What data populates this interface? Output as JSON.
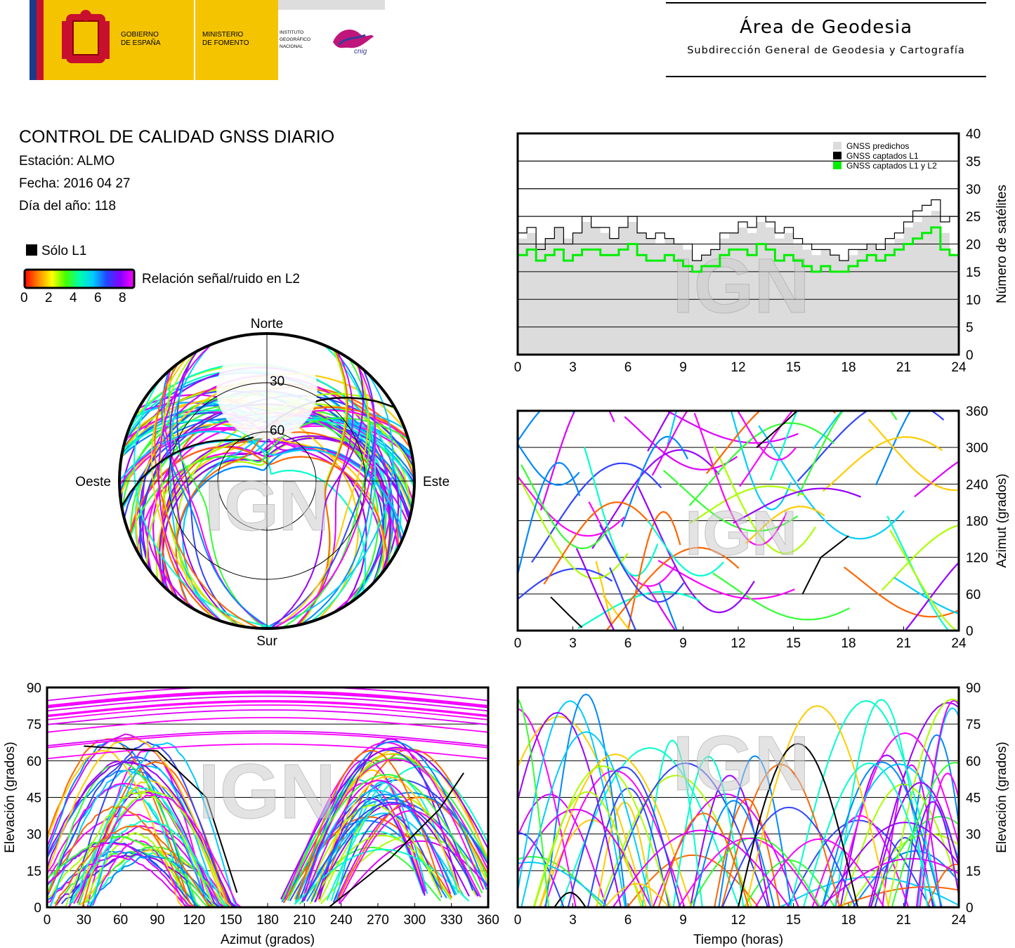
{
  "header": {
    "gov_line1": "GOBIERNO",
    "gov_line2": "DE ESPAÑA",
    "min_line1": "MINISTERIO",
    "min_line2": "DE FOMENTO",
    "ign_line1": "INSTITUTO",
    "ign_line2": "GEOGRÁFICO",
    "ign_line3": "NACIONAL",
    "cnig_text": "cnig",
    "area_title": "Área de Geodesia",
    "area_subtitle": "Subdirección General de Geodesia y Cartografía"
  },
  "info": {
    "title": "CONTROL DE CALIDAD GNSS DIARIO",
    "station": "Estación: ALMO",
    "date": "Fecha: 2016 04 27",
    "doy": "Día del año: 118"
  },
  "legend": {
    "only_l1": "Sólo L1",
    "snr_label": "Relación señal/ruido en L2",
    "snr_ticks": [
      "0",
      "2",
      "4",
      "6",
      "8"
    ],
    "gradient_colors": [
      "#ff0000",
      "#ff8800",
      "#ffff00",
      "#44ff00",
      "#00ffaa",
      "#00ccff",
      "#2244ff",
      "#8800ff",
      "#ff00ff"
    ]
  },
  "watermark": "IGN",
  "colors": {
    "grid": "#000000",
    "predicted_fill": "#dcdcdc",
    "captured_l1": "#000000",
    "captured_l1l2": "#00ee00"
  },
  "chart_data": [
    {
      "type": "area",
      "id": "satellites",
      "ylabel": "Número de satélites",
      "xlim": [
        0,
        24
      ],
      "ylim": [
        0,
        40
      ],
      "xticks": [
        "0",
        "3",
        "6",
        "9",
        "12",
        "15",
        "18",
        "21",
        "24"
      ],
      "yticks": [
        "0",
        "5",
        "10",
        "15",
        "20",
        "25",
        "30",
        "35",
        "40"
      ],
      "legend": [
        "GNSS predichos",
        "GNSS captados L1",
        "GNSS captados L1 y L2"
      ],
      "legend_position": "top-right",
      "grid": true,
      "x": [
        0,
        0.5,
        1,
        1.5,
        2,
        2.5,
        3,
        3.5,
        4,
        4.5,
        5,
        5.5,
        6,
        6.5,
        7,
        7.5,
        8,
        8.5,
        9,
        9.5,
        10,
        10.5,
        11,
        11.5,
        12,
        12.5,
        13,
        13.5,
        14,
        14.5,
        15,
        15.5,
        16,
        16.5,
        17,
        17.5,
        18,
        18.5,
        19,
        19.5,
        20,
        20.5,
        21,
        21.5,
        22,
        22.5,
        23,
        23.5,
        24
      ],
      "series": [
        {
          "name": "GNSS predichos",
          "values": [
            21,
            22,
            20,
            21,
            23,
            21,
            22,
            24,
            23,
            22,
            21,
            23,
            24,
            22,
            21,
            20,
            21,
            20,
            19,
            17,
            18,
            19,
            21,
            22,
            23,
            22,
            24,
            23,
            21,
            22,
            20,
            19,
            18,
            19,
            18,
            17,
            18,
            19,
            20,
            19,
            20,
            21,
            23,
            24,
            25,
            26,
            22,
            18,
            18
          ]
        },
        {
          "name": "GNSS captados L1",
          "values": [
            22,
            23,
            19,
            21,
            23,
            20,
            22,
            25,
            23,
            23,
            21,
            23,
            25,
            22,
            21,
            22,
            21,
            20,
            20,
            17,
            18,
            19,
            22,
            22,
            24,
            23,
            25,
            24,
            22,
            23,
            21,
            20,
            19,
            19,
            18,
            17,
            19,
            19,
            20,
            19,
            21,
            22,
            24,
            26,
            27,
            28,
            24,
            25,
            25
          ]
        },
        {
          "name": "GNSS captados L1 y L2",
          "values": [
            18,
            19,
            17,
            18,
            19,
            17,
            18,
            19,
            19,
            18,
            18,
            19,
            20,
            18,
            17,
            17,
            18,
            17,
            16,
            15,
            16,
            16,
            18,
            19,
            19,
            18,
            20,
            19,
            17,
            18,
            17,
            16,
            15,
            16,
            15,
            15,
            16,
            17,
            18,
            17,
            18,
            19,
            20,
            21,
            22,
            23,
            19,
            18,
            18
          ]
        }
      ]
    },
    {
      "type": "scatter",
      "id": "skyplot",
      "labels": [
        "Norte",
        "Sur",
        "Este",
        "Oeste"
      ],
      "rings": [
        "30",
        "60"
      ]
    },
    {
      "type": "scatter",
      "id": "azimuth_time",
      "ylabel": "Azimut (grados)",
      "xlim": [
        0,
        24
      ],
      "ylim": [
        0,
        360
      ],
      "xticks": [
        "0",
        "3",
        "6",
        "9",
        "12",
        "15",
        "18",
        "21",
        "24"
      ],
      "yticks": [
        "0",
        "60",
        "120",
        "180",
        "240",
        "300",
        "360"
      ],
      "grid": true
    },
    {
      "type": "scatter",
      "id": "elev_azimuth",
      "xlabel": "Azimut (grados)",
      "ylabel": "Elevación (grados)",
      "xlim": [
        0,
        360
      ],
      "ylim": [
        0,
        90
      ],
      "xticks": [
        "0",
        "30",
        "60",
        "90",
        "120",
        "150",
        "180",
        "210",
        "240",
        "270",
        "300",
        "330",
        "360"
      ],
      "yticks": [
        "0",
        "15",
        "30",
        "45",
        "60",
        "75",
        "90"
      ],
      "grid": true
    },
    {
      "type": "scatter",
      "id": "elev_time",
      "xlabel": "Tiempo (horas)",
      "ylabel": "Elevación (grados)",
      "xlim": [
        0,
        24
      ],
      "ylim": [
        0,
        90
      ],
      "xticks": [
        "0",
        "3",
        "6",
        "9",
        "12",
        "15",
        "18",
        "21",
        "24"
      ],
      "yticks": [
        "0",
        "15",
        "30",
        "45",
        "60",
        "75",
        "90"
      ],
      "grid": true
    }
  ]
}
